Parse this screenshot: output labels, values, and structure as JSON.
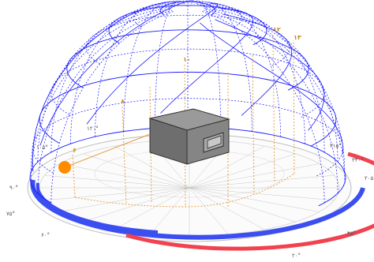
{
  "scene": {
    "azimuth_labels": [
      {
        "text": "۳۱۵°",
        "angle": 320
      },
      {
        "text": "۳۳۰°",
        "angle": 335
      },
      {
        "text": "۲۰۵°",
        "angle": 5
      },
      {
        "text": "۱۲۰°",
        "angle": 120
      },
      {
        "text": "۱۰۵°",
        "angle": 168
      },
      {
        "text": "۹۰°",
        "angle": 183
      },
      {
        "text": "۷۵°",
        "angle": 205
      },
      {
        "text": "۶۰°",
        "angle": 225
      },
      {
        "text": "۴۵°",
        "angle": 270
      },
      {
        "text": "۲۰°",
        "angle": 298
      }
    ],
    "hour_labels": [
      {
        "text": "۶"
      },
      {
        "text": "۸"
      },
      {
        "text": "۱۰"
      },
      {
        "text": "۱۲"
      },
      {
        "text": "۱۳"
      }
    ],
    "colors": {
      "dome_lines": "#1a1aff",
      "base_ring_blue": "#3b4ef0",
      "base_ring_red": "#f2414f",
      "sun": "#ff8c00",
      "sun_path_lines": "#e39a3a",
      "grid": "#c8c8c8",
      "box_top": "#9a9a9a",
      "box_front": "#7a7a7a",
      "box_side": "#5f5f5f"
    }
  }
}
